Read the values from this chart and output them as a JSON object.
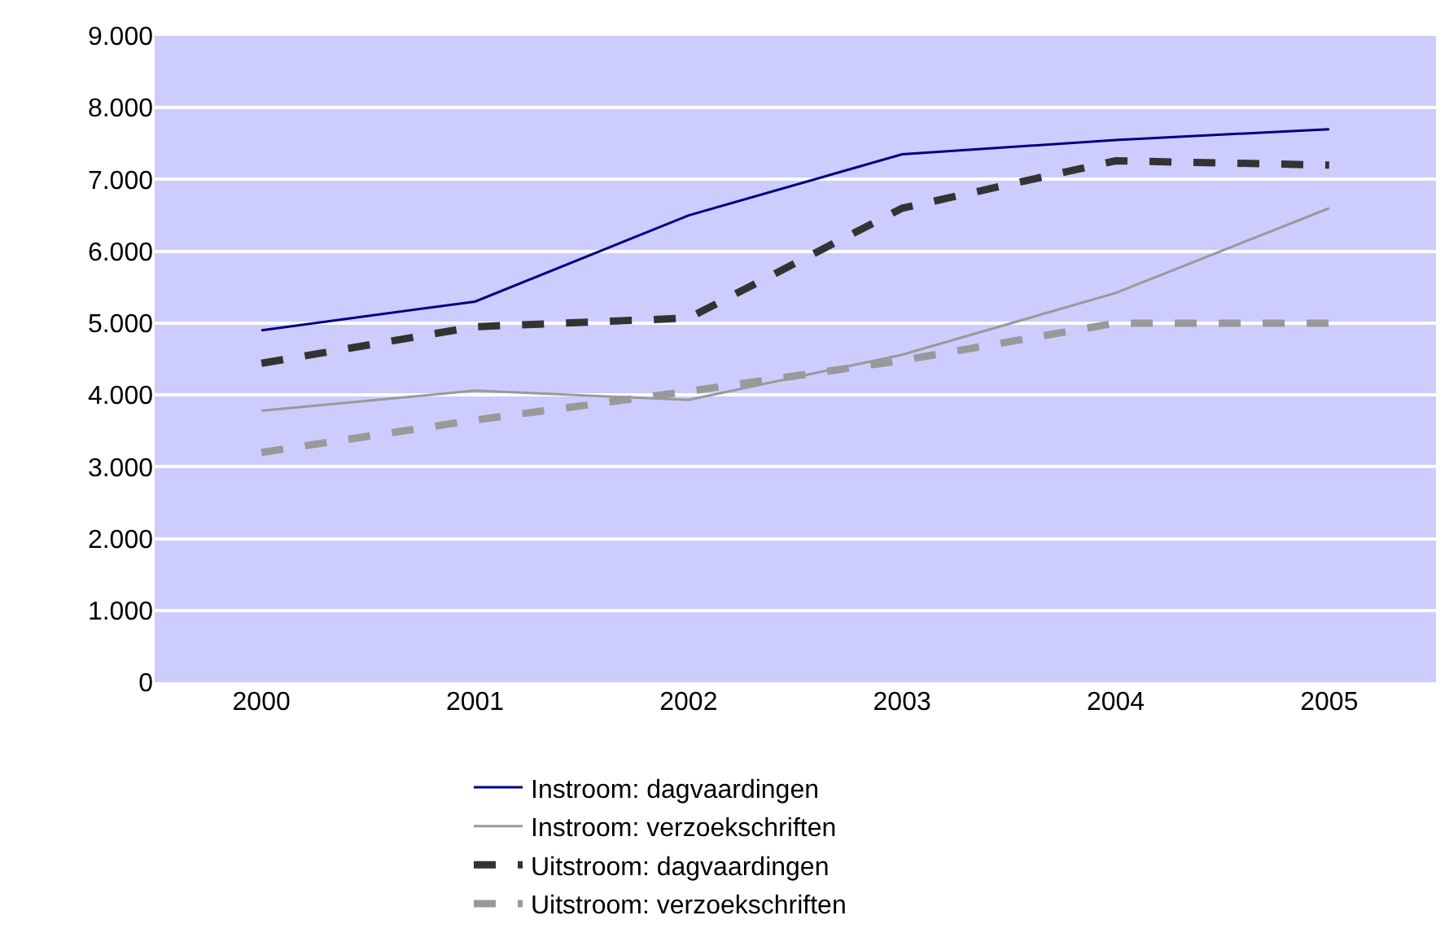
{
  "chart_data": {
    "type": "line",
    "categories": [
      "2000",
      "2001",
      "2002",
      "2003",
      "2004",
      "2005"
    ],
    "series": [
      {
        "name": "Instroom: dagvaardingen",
        "color": "#000080",
        "line_style": "solid",
        "values": [
          4900,
          5300,
          6500,
          7350,
          7550,
          7700
        ]
      },
      {
        "name": "Instroom: verzoekschriften",
        "color": "#999999",
        "line_style": "solid",
        "values": [
          3780,
          4060,
          3930,
          4560,
          5420,
          6600
        ]
      },
      {
        "name": "Uitstroom: dagvaardingen",
        "color": "#333333",
        "line_style": "dashed",
        "values": [
          4440,
          4950,
          5070,
          6600,
          7260,
          7200
        ]
      },
      {
        "name": "Uitstroom: verzoekschriften",
        "color": "#999999",
        "line_style": "dashed",
        "values": [
          3200,
          3650,
          4050,
          4480,
          5000,
          5000
        ]
      }
    ],
    "ylim": [
      0,
      9000
    ],
    "yticks": [
      {
        "value": 0,
        "label": "0"
      },
      {
        "value": 1000,
        "label": "1.000"
      },
      {
        "value": 2000,
        "label": "2.000"
      },
      {
        "value": 3000,
        "label": "3.000"
      },
      {
        "value": 4000,
        "label": "4.000"
      },
      {
        "value": 5000,
        "label": "5.000"
      },
      {
        "value": 6000,
        "label": "6.000"
      },
      {
        "value": 7000,
        "label": "7.000"
      },
      {
        "value": 8000,
        "label": "8.000"
      },
      {
        "value": 9000,
        "label": "9.000"
      }
    ],
    "grid": "y",
    "legend": "bottom",
    "marker": "none"
  }
}
